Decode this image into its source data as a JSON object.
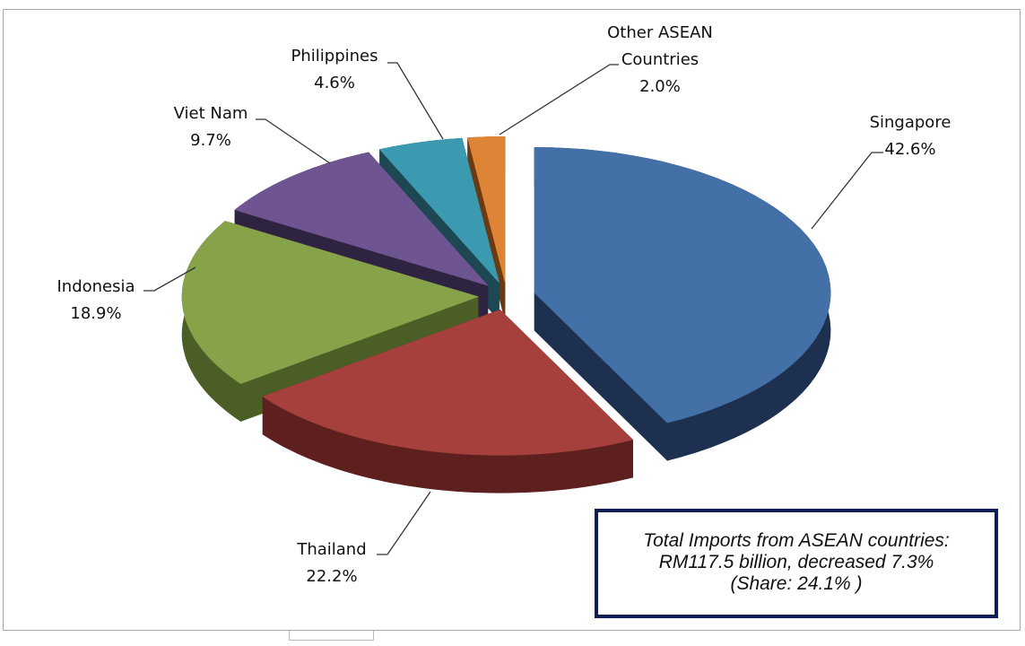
{
  "chart_data": {
    "type": "pie",
    "style": "3d-exploded",
    "title": "",
    "categories": [
      "Singapore",
      "Thailand",
      "Indonesia",
      "Viet Nam",
      "Philippines",
      "Other ASEAN Countries"
    ],
    "values": [
      42.6,
      22.2,
      18.9,
      9.7,
      4.6,
      2.0
    ],
    "value_labels": [
      "42.6%",
      "22.2%",
      "18.9%",
      "9.7%",
      "4.6%",
      "2.0%"
    ],
    "label_lines": [
      [
        "Singapore"
      ],
      [
        "Thailand"
      ],
      [
        "Indonesia"
      ],
      [
        "Viet Nam"
      ],
      [
        "Philippines"
      ],
      [
        "Other ASEAN",
        "Countries"
      ]
    ],
    "colors": [
      "#4470a8",
      "#a5403d",
      "#86a34a",
      "#6e5490",
      "#3b9ab0",
      "#dd8437"
    ],
    "side_colors": [
      "#1d3050",
      "#5e201e",
      "#4b5e26",
      "#2f2342",
      "#1d4752",
      "#6b3a12"
    ],
    "legend": "none"
  },
  "annotation": {
    "line1": "Total Imports from ASEAN countries:",
    "line2": "RM117.5 billion, decreased 7.3%",
    "line3": "(Share: 24.1% )"
  }
}
